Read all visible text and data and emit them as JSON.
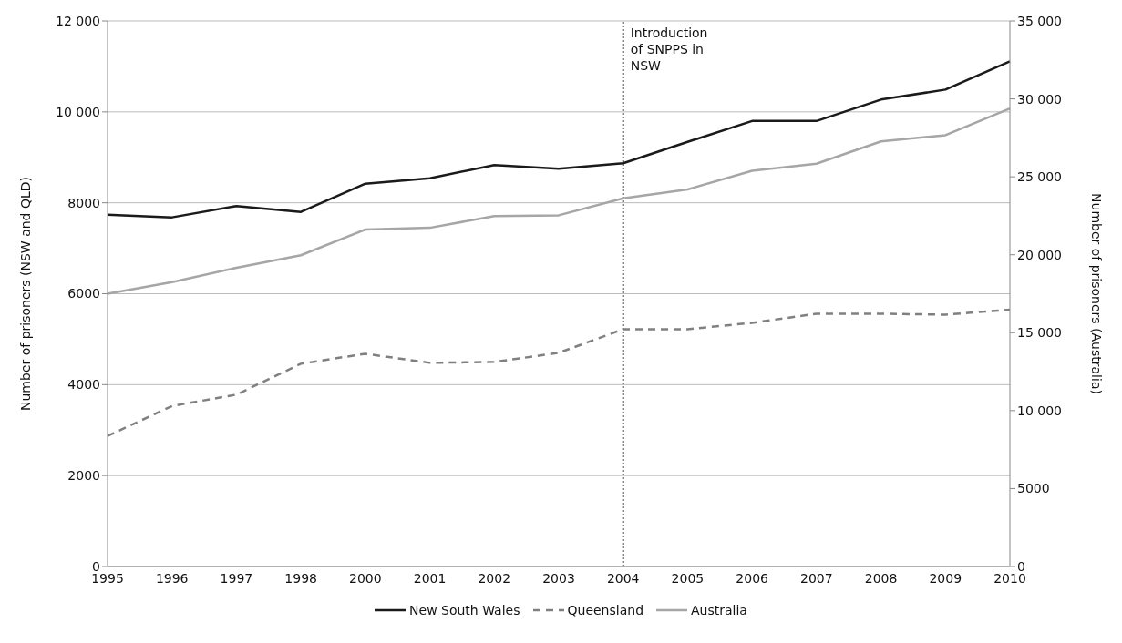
{
  "chart_data": {
    "type": "line",
    "ylabel": "Number of prisoners (NSW and QLD)",
    "y2label": "Number of prisoners (Australia)",
    "categories": [
      "1995",
      "1996",
      "1997",
      "1998",
      "2000",
      "2001",
      "2002",
      "2003",
      "2004",
      "2005",
      "2006",
      "2007",
      "2008",
      "2009",
      "2010"
    ],
    "series": [
      {
        "name": "New South Wales",
        "color": "#1a1a1a",
        "line_style": "solid",
        "values": [
          7740,
          7680,
          7930,
          7800,
          8420,
          8540,
          8830,
          8750,
          8870,
          9340,
          9800,
          9800,
          10270,
          10490,
          11110
        ]
      },
      {
        "name": "Queensland",
        "color": "#808080",
        "line_style": "dashed",
        "values": [
          2870,
          3530,
          3780,
          4460,
          4680,
          4480,
          4500,
          4700,
          5220,
          5220,
          5360,
          5560,
          5560,
          5540,
          5650
        ]
      },
      {
        "name": "Australia",
        "color": "#a6a6a6",
        "line_style": "solid",
        "axis": "y2",
        "values": [
          17500,
          18250,
          19170,
          19970,
          21620,
          21730,
          22480,
          22530,
          23620,
          24190,
          25390,
          25840,
          27270,
          27670,
          29380
        ]
      }
    ],
    "ylim": [
      0,
      12000
    ],
    "yticks": [
      0,
      2000,
      4000,
      6000,
      8000,
      {
        "value": 10000,
        "label": "10 000"
      },
      {
        "value": 12000,
        "label": "12 000"
      }
    ],
    "y2lim": [
      0,
      35000
    ],
    "y2ticks": [
      0,
      5000,
      {
        "value": 10000,
        "label": "10 000"
      },
      {
        "value": 15000,
        "label": "15 000"
      },
      {
        "value": 20000,
        "label": "20 000"
      },
      {
        "value": 25000,
        "label": "25 000"
      },
      {
        "value": 30000,
        "label": "30 000"
      },
      {
        "value": 35000,
        "label": "35 000"
      }
    ],
    "ref_lines": [
      {
        "axis": "x",
        "value": "2004",
        "label": "Introduction of SNPPS in NSW",
        "color": "#555555",
        "line_style": "dotted"
      }
    ],
    "grid": "y",
    "legend": "bottom"
  }
}
